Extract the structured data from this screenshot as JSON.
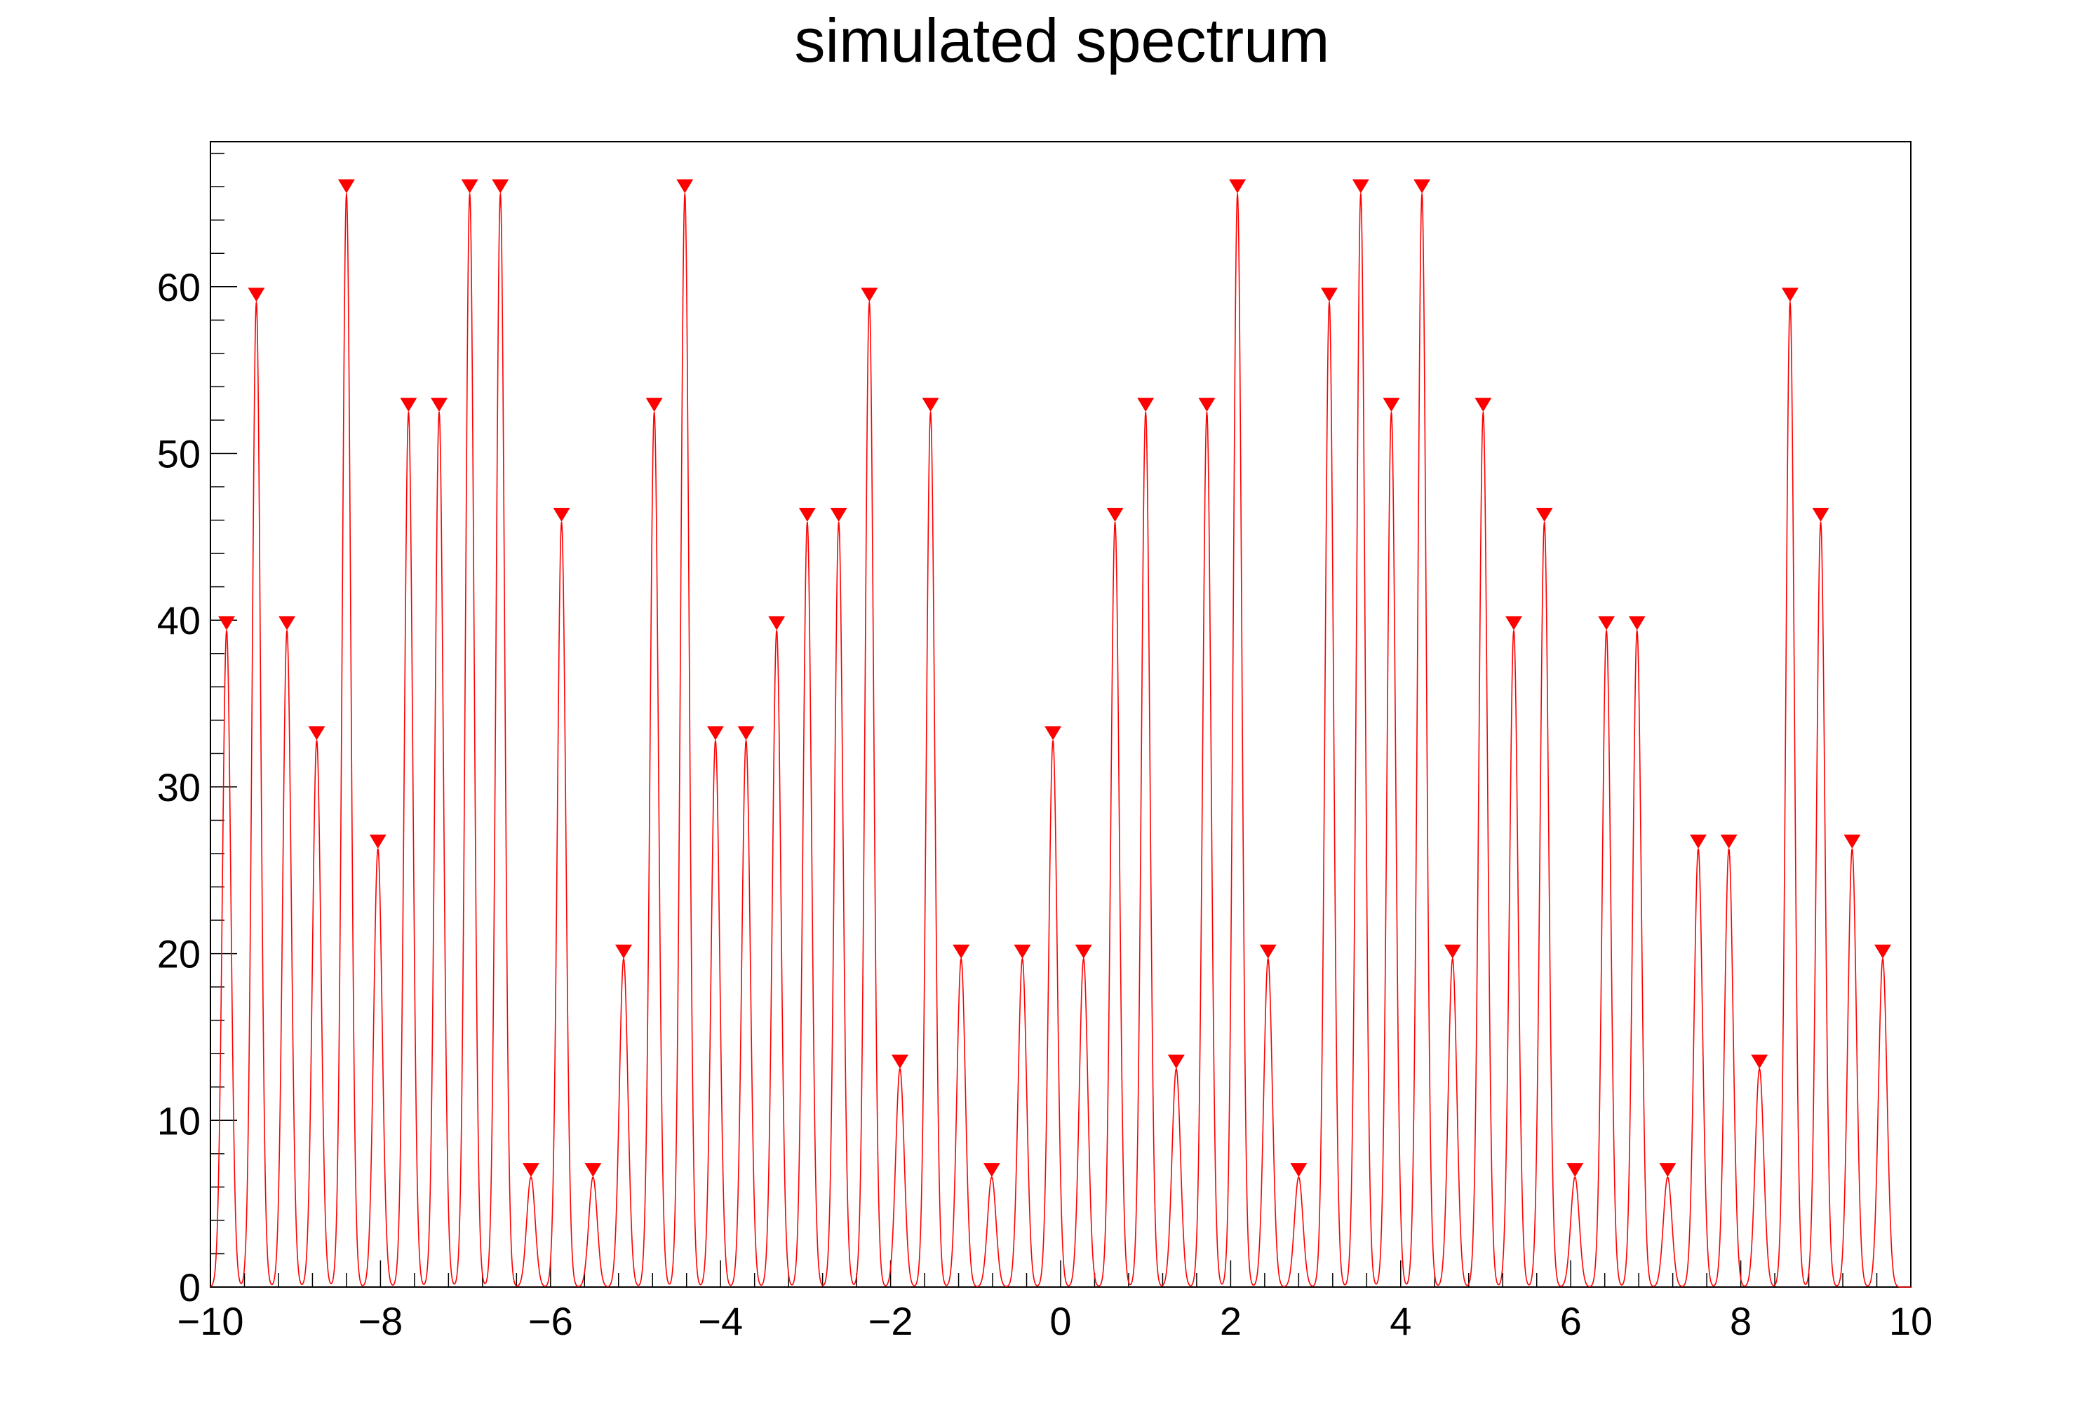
{
  "chart_data": {
    "type": "line",
    "title": "simulated spectrum",
    "xlabel": "",
    "ylabel": "",
    "xlim": [
      -10,
      10
    ],
    "ylim": [
      0,
      68.7
    ],
    "x_ticks": [
      -10,
      -8,
      -6,
      -4,
      -2,
      0,
      2,
      4,
      6,
      8,
      10
    ],
    "x_tick_labels": [
      "−10",
      "−8",
      "−6",
      "−4",
      "−2",
      "0",
      "2",
      "4",
      "6",
      "8",
      "10"
    ],
    "y_ticks": [
      0,
      10,
      20,
      30,
      40,
      50,
      60
    ],
    "y_tick_labels": [
      "0",
      "10",
      "20",
      "30",
      "40",
      "50",
      "60"
    ],
    "grid": false,
    "colors": {
      "line": "#ff0000",
      "marker": "#ff0000",
      "axis": "#000000"
    },
    "marker_shape": "inverted-triangle",
    "peak_width_sigma": 0.05,
    "peaks": [
      {
        "x": -9.81,
        "y": 39.4
      },
      {
        "x": -9.46,
        "y": 59.1
      },
      {
        "x": -9.1,
        "y": 39.4
      },
      {
        "x": -8.75,
        "y": 32.8
      },
      {
        "x": -8.4,
        "y": 65.6
      },
      {
        "x": -8.03,
        "y": 26.3
      },
      {
        "x": -7.67,
        "y": 52.5
      },
      {
        "x": -7.31,
        "y": 52.5
      },
      {
        "x": -6.95,
        "y": 65.6
      },
      {
        "x": -6.59,
        "y": 65.6
      },
      {
        "x": -6.23,
        "y": 6.6
      },
      {
        "x": -5.87,
        "y": 45.9
      },
      {
        "x": -5.5,
        "y": 6.6
      },
      {
        "x": -5.14,
        "y": 19.7
      },
      {
        "x": -4.78,
        "y": 52.5
      },
      {
        "x": -4.42,
        "y": 65.6
      },
      {
        "x": -4.06,
        "y": 32.8
      },
      {
        "x": -3.7,
        "y": 32.8
      },
      {
        "x": -3.34,
        "y": 39.4
      },
      {
        "x": -2.98,
        "y": 45.9
      },
      {
        "x": -2.61,
        "y": 45.9
      },
      {
        "x": -2.25,
        "y": 59.1
      },
      {
        "x": -1.89,
        "y": 13.1
      },
      {
        "x": -1.53,
        "y": 52.5
      },
      {
        "x": -1.17,
        "y": 19.7
      },
      {
        "x": -0.81,
        "y": 6.6
      },
      {
        "x": -0.45,
        "y": 19.7
      },
      {
        "x": -0.09,
        "y": 32.8
      },
      {
        "x": 0.27,
        "y": 19.7
      },
      {
        "x": 0.64,
        "y": 45.9
      },
      {
        "x": 1.0,
        "y": 52.5
      },
      {
        "x": 1.36,
        "y": 13.1
      },
      {
        "x": 1.72,
        "y": 52.5
      },
      {
        "x": 2.08,
        "y": 65.6
      },
      {
        "x": 2.44,
        "y": 19.7
      },
      {
        "x": 2.8,
        "y": 6.6
      },
      {
        "x": 3.16,
        "y": 59.1
      },
      {
        "x": 3.53,
        "y": 65.6
      },
      {
        "x": 3.89,
        "y": 52.5
      },
      {
        "x": 4.25,
        "y": 65.6
      },
      {
        "x": 4.61,
        "y": 19.7
      },
      {
        "x": 4.97,
        "y": 52.5
      },
      {
        "x": 5.33,
        "y": 39.4
      },
      {
        "x": 5.69,
        "y": 45.9
      },
      {
        "x": 6.05,
        "y": 6.6
      },
      {
        "x": 6.42,
        "y": 39.4
      },
      {
        "x": 6.78,
        "y": 39.4
      },
      {
        "x": 7.14,
        "y": 6.6
      },
      {
        "x": 7.5,
        "y": 26.3
      },
      {
        "x": 7.86,
        "y": 26.3
      },
      {
        "x": 8.22,
        "y": 13.1
      },
      {
        "x": 8.58,
        "y": 59.1
      },
      {
        "x": 8.94,
        "y": 45.9
      },
      {
        "x": 9.31,
        "y": 26.3
      },
      {
        "x": 9.67,
        "y": 19.7
      }
    ]
  }
}
